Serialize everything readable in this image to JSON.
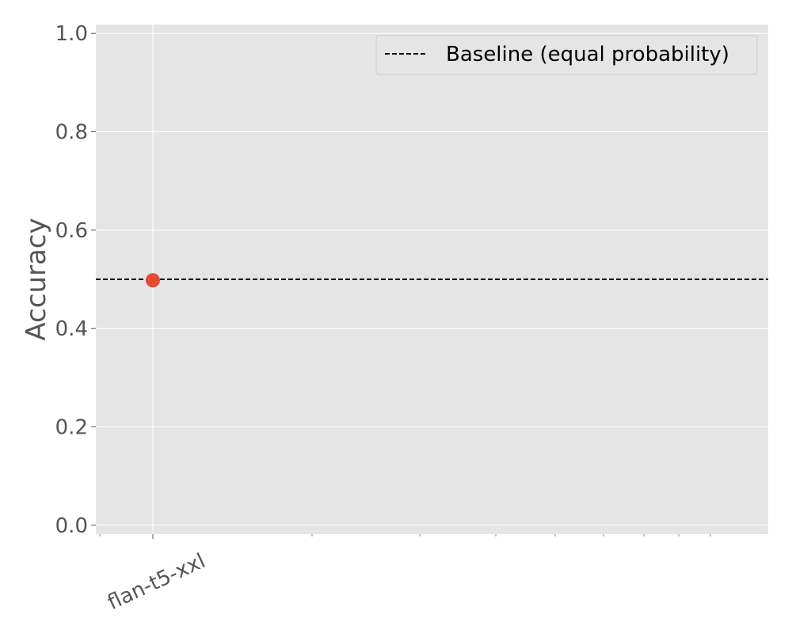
{
  "chart_data": {
    "type": "scatter",
    "ylabel": "Accuracy",
    "xlabel": "",
    "title": "",
    "ylim": [
      -0.018,
      1.018
    ],
    "yticks": [
      0.0,
      0.2,
      0.4,
      0.6,
      0.8,
      1.0
    ],
    "ytick_labels": [
      "0.0",
      "0.2",
      "0.4",
      "0.6",
      "0.8",
      "1.0"
    ],
    "categories": [
      "flan-t5-xxl"
    ],
    "series": [
      {
        "values": [
          0.498
        ],
        "color": "#E24A33"
      }
    ],
    "baseline": {
      "label": "Baseline (equal probability)",
      "y": 0.5,
      "style": "dashed",
      "color": "#000000"
    },
    "grid": true,
    "background": "#E5E5E5",
    "legend_position": "top-right"
  }
}
